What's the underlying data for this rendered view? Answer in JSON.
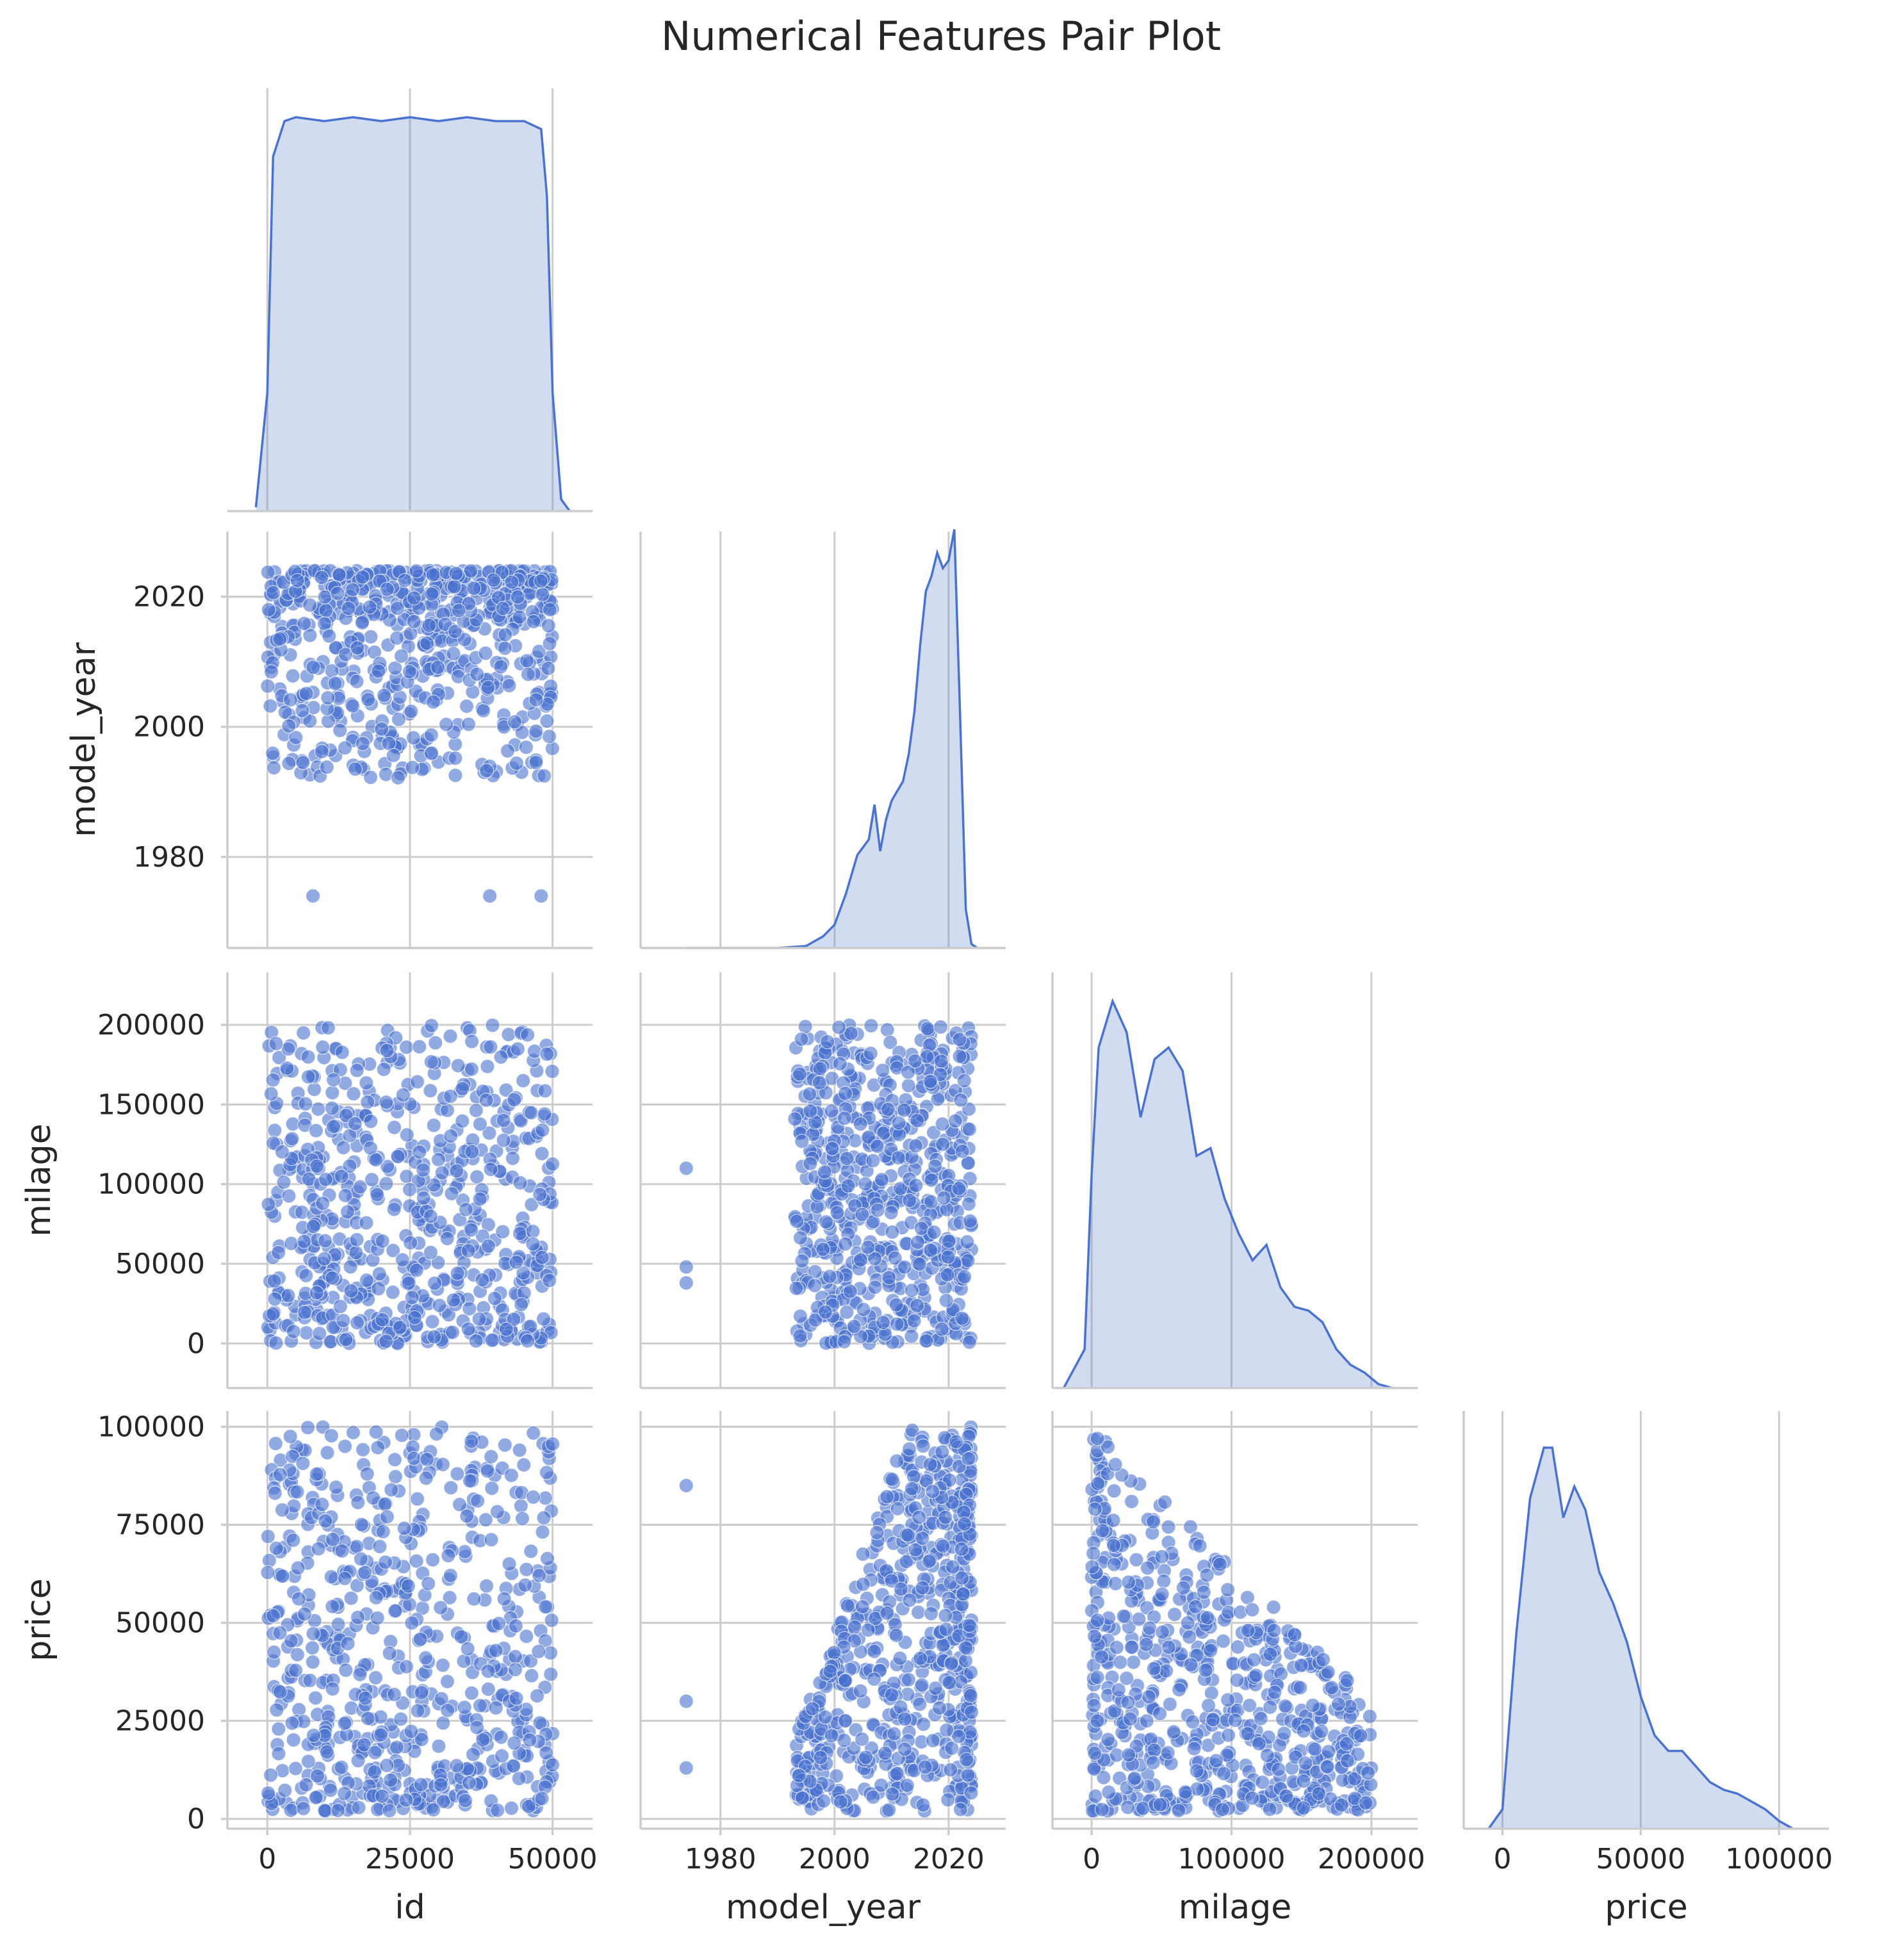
{
  "chart_data": {
    "type": "scatter",
    "title": "Numerical Features Pair Plot",
    "corner": true,
    "grid": true,
    "colors": {
      "marker": "#4a72cf",
      "kde_fill": "#c8d6f0",
      "grid": "#cccccc",
      "text": "#262626"
    },
    "variables": [
      "id",
      "model_year",
      "milage",
      "price"
    ],
    "axes": {
      "id": {
        "label": "id",
        "range": [
          -7000,
          57000
        ],
        "ticks": [
          0,
          25000,
          50000
        ],
        "tick_labels": [
          "0",
          "25000",
          "50000"
        ]
      },
      "model_year": {
        "label": "model_year",
        "range": [
          1966,
          2030
        ],
        "ticks": [
          1980,
          2000,
          2020
        ],
        "tick_labels": [
          "1980",
          "2000",
          "2020"
        ]
      },
      "milage": {
        "label": "milage",
        "range": [
          -28000,
          233000
        ],
        "ticks": [
          0,
          100000,
          200000
        ],
        "tick_labels": [
          "0",
          "100000",
          "200000"
        ],
        "y_ticks": [
          0,
          50000,
          100000,
          150000,
          200000
        ],
        "y_tick_labels": [
          "0",
          "50000",
          "100000",
          "150000",
          "200000"
        ]
      },
      "price": {
        "label": "price",
        "range": [
          -14000,
          118000
        ],
        "ticks": [
          0,
          50000,
          100000
        ],
        "tick_labels": [
          "0",
          "50000",
          "100000"
        ],
        "y_range": [
          -2500,
          104000
        ],
        "y_ticks": [
          0,
          25000,
          50000,
          75000,
          100000
        ],
        "y_tick_labels": [
          "0",
          "25000",
          "50000",
          "75000",
          "100000"
        ]
      }
    },
    "diagonal_kde": [
      {
        "variable": "id",
        "x": [
          -2000,
          0,
          1000,
          3000,
          5000,
          10000,
          15000,
          20000,
          25000,
          30000,
          35000,
          40000,
          45000,
          48000,
          49000,
          50000,
          51500,
          53000
        ],
        "density": [
          0.01,
          0.3,
          0.9,
          0.99,
          1.0,
          0.99,
          1.0,
          0.99,
          1.0,
          0.99,
          1.0,
          0.99,
          0.99,
          0.97,
          0.8,
          0.3,
          0.03,
          0.0
        ]
      },
      {
        "variable": "model_year",
        "x": [
          1974,
          1990,
          1995,
          1998,
          2000,
          2002,
          2004,
          2006,
          2007,
          2008,
          2009,
          2010,
          2012,
          2013,
          2014,
          2015,
          2016,
          2017,
          2018,
          2019,
          2020,
          2021,
          2022,
          2023,
          2024,
          2025
        ],
        "density": [
          0.0,
          0.0,
          0.005,
          0.03,
          0.06,
          0.14,
          0.24,
          0.28,
          0.37,
          0.25,
          0.33,
          0.38,
          0.43,
          0.5,
          0.61,
          0.78,
          0.92,
          0.96,
          1.02,
          0.98,
          1.0,
          1.08,
          0.6,
          0.1,
          0.01,
          0.0
        ]
      },
      {
        "variable": "milage",
        "x": [
          -20000,
          -5000,
          0,
          5000,
          15000,
          25000,
          35000,
          45000,
          55000,
          65000,
          75000,
          85000,
          95000,
          105000,
          115000,
          125000,
          135000,
          145000,
          155000,
          165000,
          175000,
          185000,
          195000,
          205000,
          215000
        ],
        "density": [
          0.0,
          0.1,
          0.55,
          0.88,
          1.0,
          0.92,
          0.7,
          0.85,
          0.88,
          0.82,
          0.6,
          0.62,
          0.49,
          0.4,
          0.33,
          0.37,
          0.26,
          0.21,
          0.2,
          0.17,
          0.1,
          0.06,
          0.04,
          0.01,
          0.0
        ]
      },
      {
        "variable": "price",
        "x": [
          -5000,
          0,
          5000,
          10000,
          15000,
          18000,
          22000,
          26000,
          30000,
          35000,
          40000,
          45000,
          50000,
          55000,
          60000,
          65000,
          70000,
          75000,
          80000,
          85000,
          90000,
          95000,
          100000,
          105000
        ],
        "density": [
          0.0,
          0.05,
          0.5,
          0.85,
          0.98,
          0.98,
          0.8,
          0.88,
          0.82,
          0.66,
          0.58,
          0.48,
          0.34,
          0.24,
          0.2,
          0.2,
          0.16,
          0.12,
          0.1,
          0.09,
          0.07,
          0.05,
          0.02,
          0.0
        ]
      }
    ],
    "scatter_panels": [
      {
        "x": "id",
        "y": "model_year",
        "x_range": [
          0,
          50000
        ],
        "y_range": [
          1992,
          2024
        ],
        "outliers": [
          [
            8000,
            1974
          ],
          [
            39000,
            1974
          ],
          [
            48000,
            1974
          ]
        ]
      },
      {
        "x": "id",
        "y": "milage",
        "x_range": [
          0,
          50000
        ],
        "y_range": [
          0,
          200000
        ]
      },
      {
        "x": "model_year",
        "y": "milage",
        "x_range": [
          1993,
          2024
        ],
        "y_range": [
          0,
          200000
        ],
        "outliers": [
          [
            1974,
            110000
          ],
          [
            1974,
            48000
          ],
          [
            1974,
            38000
          ]
        ]
      },
      {
        "x": "id",
        "y": "price",
        "x_range": [
          0,
          50000
        ],
        "y_range": [
          2000,
          100000
        ]
      },
      {
        "x": "model_year",
        "y": "price",
        "x_range": [
          1993,
          2024
        ],
        "y_range": [
          2000,
          100000
        ],
        "outliers": [
          [
            1974,
            85000
          ],
          [
            1974,
            30000
          ],
          [
            1974,
            13000
          ]
        ]
      },
      {
        "x": "milage",
        "y": "price",
        "x_range": [
          0,
          200000
        ],
        "y_range": [
          2000,
          100000
        ]
      }
    ]
  }
}
